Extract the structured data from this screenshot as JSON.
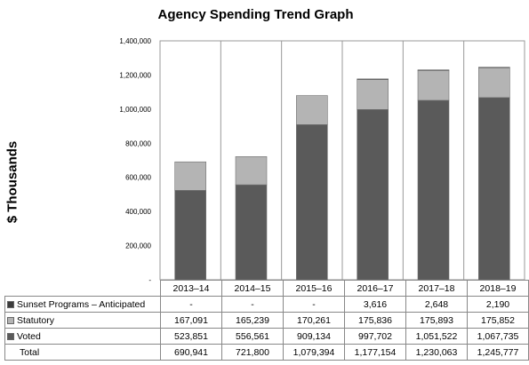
{
  "chart_data": {
    "type": "bar",
    "stacked": true,
    "title": "Agency Spending Trend Graph",
    "ylabel": "$ Thousands",
    "ylim": [
      0,
      1400000
    ],
    "yticks": [
      0,
      200000,
      400000,
      600000,
      800000,
      1000000,
      1200000,
      1400000
    ],
    "ytick_labels": [
      "-",
      "200,000",
      "400,000",
      "600,000",
      "800,000",
      "1,000,000",
      "1,200,000",
      "1,400,000"
    ],
    "grid": false,
    "legend": "table-left",
    "categories": [
      "2013–14",
      "2014–15",
      "2015–16",
      "2016–17",
      "2017–18",
      "2018–19"
    ],
    "series": [
      {
        "name": "Voted",
        "color": "#5a5a5a",
        "values": [
          523851,
          556561,
          909134,
          997702,
          1051522,
          1067735
        ],
        "labels": [
          "523,851",
          "556,561",
          "909,134",
          "997,702",
          "1,051,522",
          "1,067,735"
        ]
      },
      {
        "name": "Statutory",
        "color": "#b4b4b4",
        "values": [
          167091,
          165239,
          170261,
          175836,
          175893,
          175852
        ],
        "labels": [
          "167,091",
          "165,239",
          "170,261",
          "175,836",
          "175,893",
          "175,852"
        ]
      },
      {
        "name": "Sunset Programs – Anticipated",
        "color": "#3c3c3c",
        "values": [
          0,
          0,
          0,
          3616,
          2648,
          2190
        ],
        "labels": [
          "-",
          "-",
          "-",
          "3,616",
          "2,648",
          "2,190"
        ]
      }
    ],
    "totals": {
      "name": "Total",
      "labels": [
        "690,941",
        "721,800",
        "1,079,394",
        "1,177,154",
        "1,230,063",
        "1,245,777"
      ]
    }
  }
}
